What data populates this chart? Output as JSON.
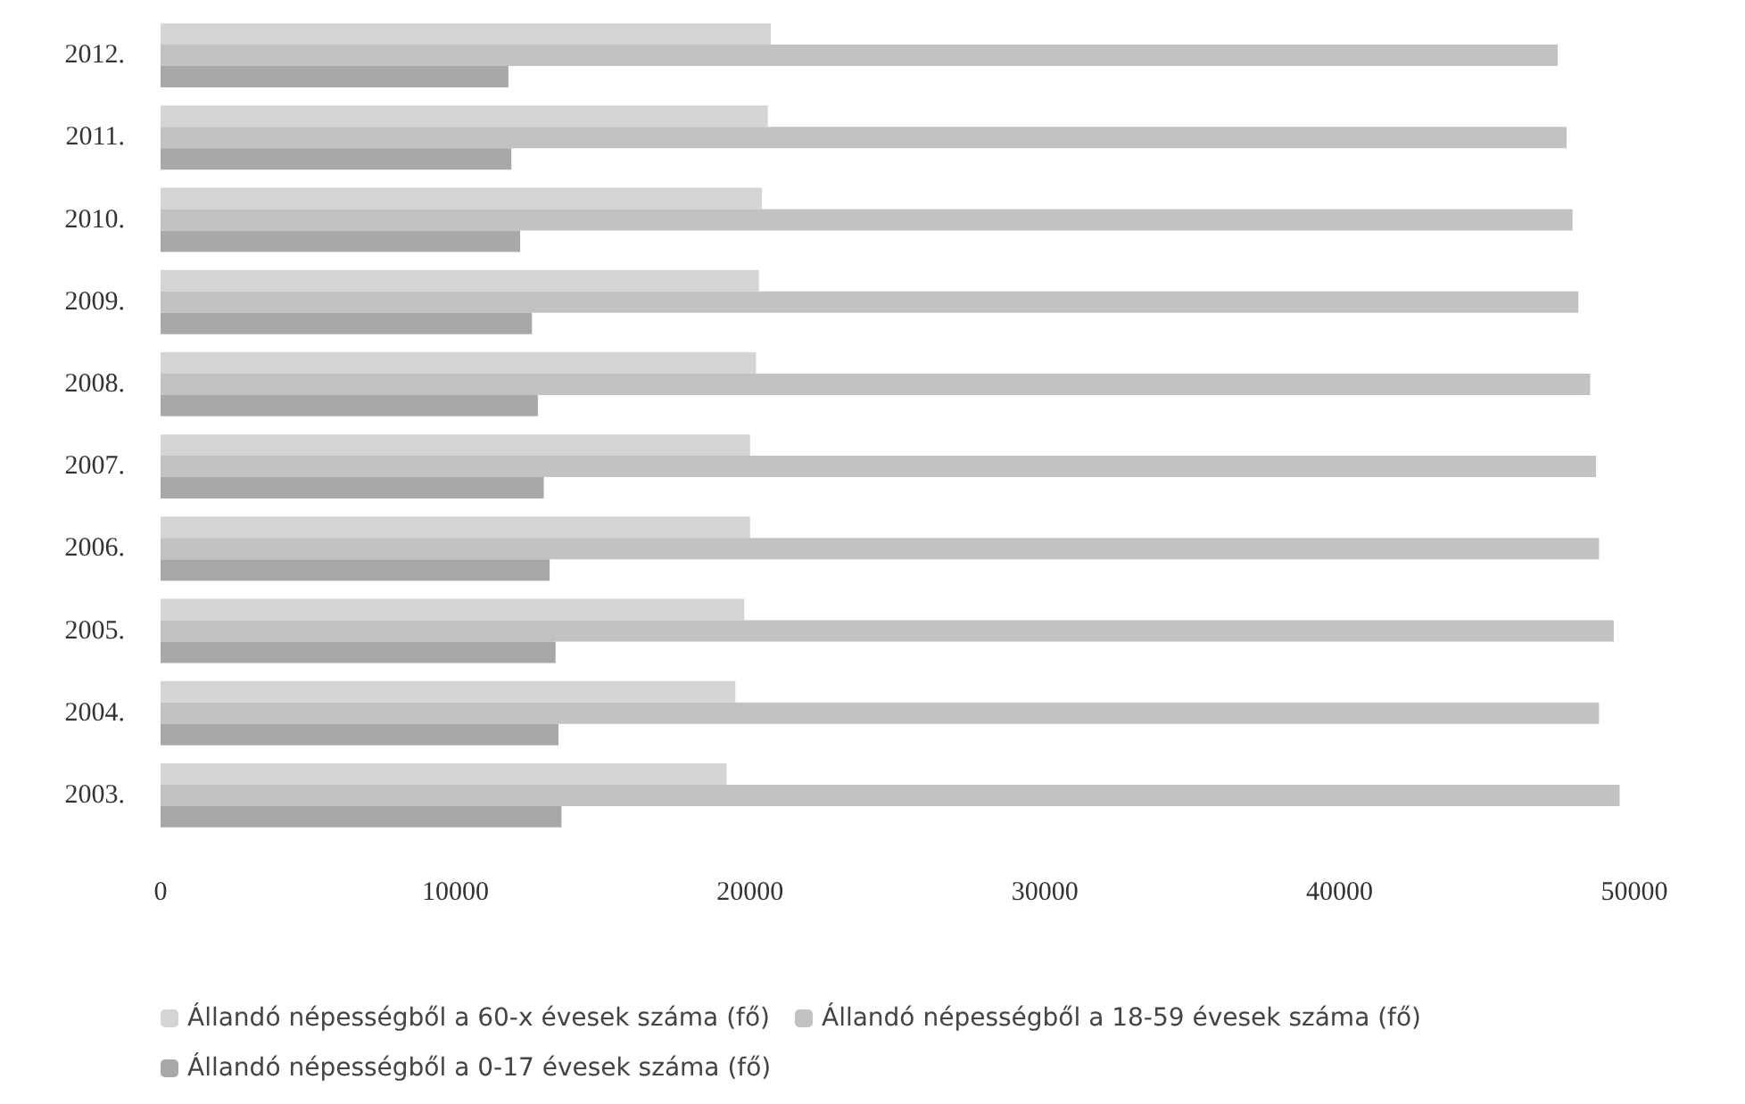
{
  "chart_data": {
    "type": "bar",
    "orientation": "horizontal",
    "categories": [
      "2012.",
      "2011.",
      "2010.",
      "2009.",
      "2008.",
      "2007.",
      "2006.",
      "2005.",
      "2004.",
      "2003."
    ],
    "series": [
      {
        "name": "Állandó népességből a 60-x évesek száma (fő)",
        "color": "#d4d4d4",
        "values": [
          20700,
          20600,
          20400,
          20300,
          20200,
          20000,
          20000,
          19800,
          19500,
          19200
        ]
      },
      {
        "name": "Állandó népességből a 18-59 évesek száma (fő)",
        "color": "#c2c2c2",
        "values": [
          47400,
          47700,
          47900,
          48100,
          48500,
          48700,
          48800,
          49300,
          48800,
          49500
        ]
      },
      {
        "name": "Állandó népességből a 0-17 évesek száma (fő)",
        "color": "#a8a8a8",
        "values": [
          11800,
          11900,
          12200,
          12600,
          12800,
          13000,
          13200,
          13400,
          13500,
          13600
        ]
      }
    ],
    "xlim": [
      0,
      50000
    ],
    "xticks": [
      0,
      10000,
      20000,
      30000,
      40000,
      50000
    ],
    "grid": false,
    "legend": "bottom"
  }
}
